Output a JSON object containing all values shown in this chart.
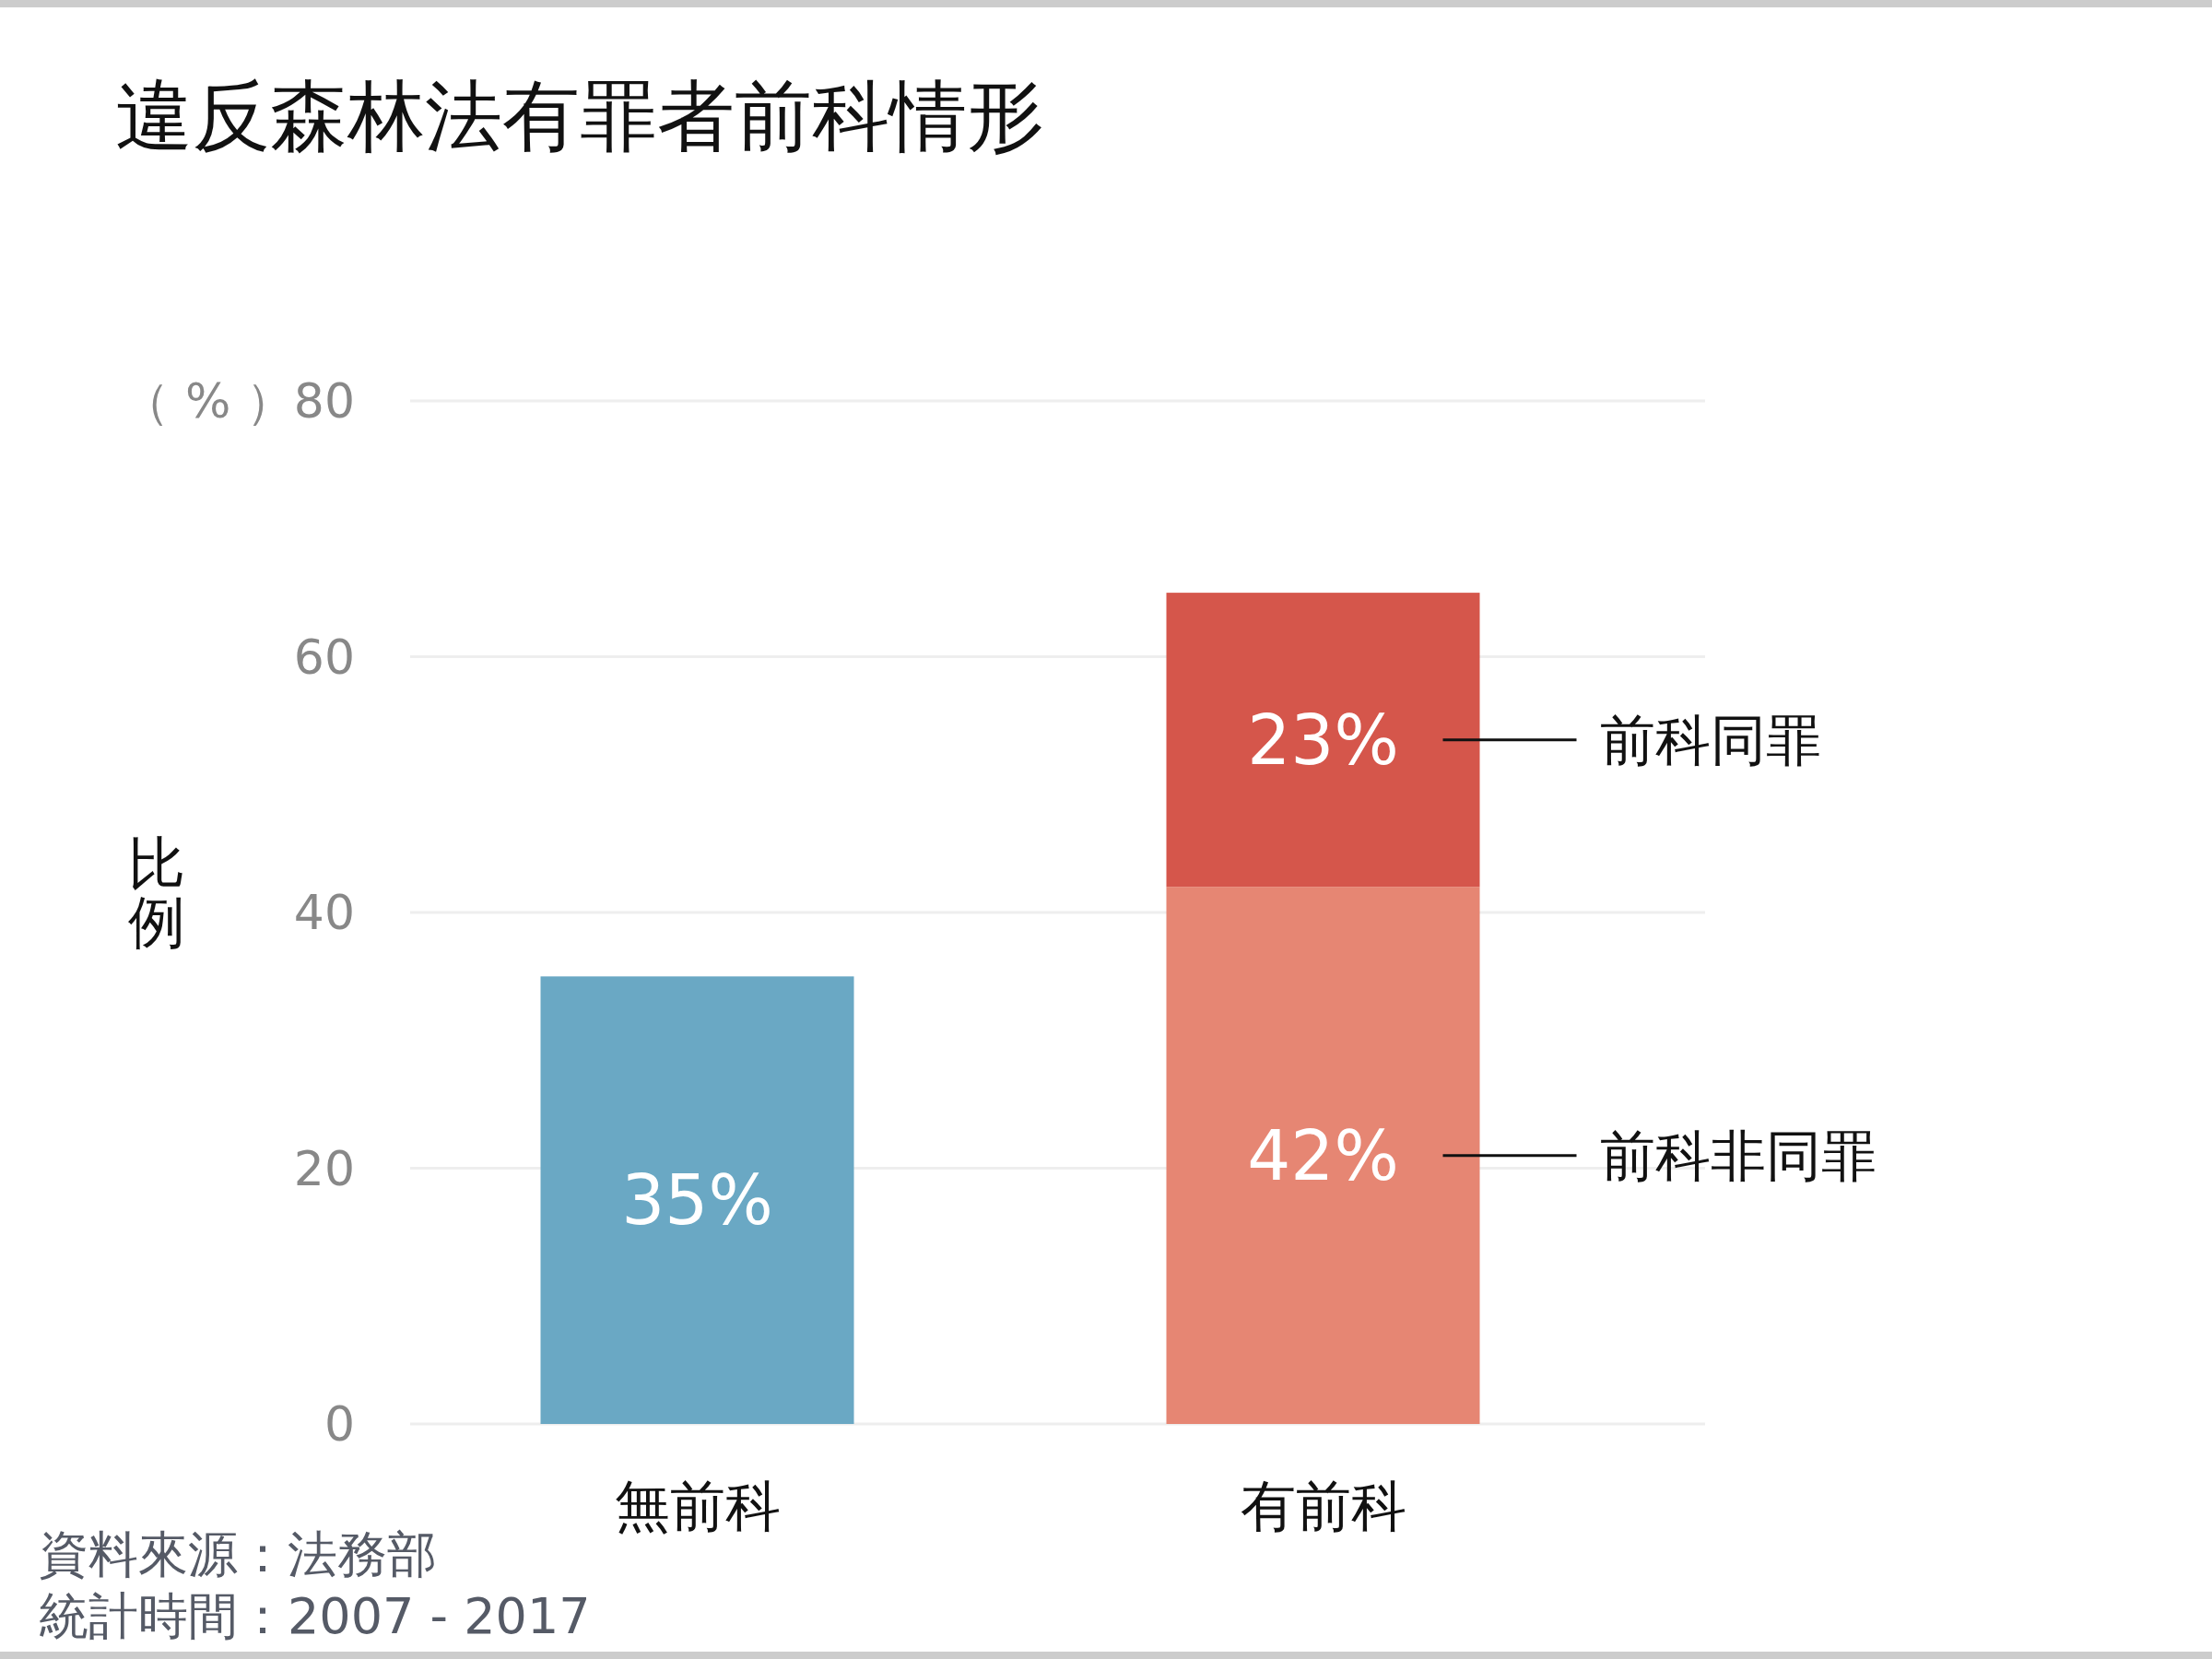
{
  "chart_data": {
    "type": "bar",
    "title": "違反森林法有罪者前科情形",
    "ylabel": "比例",
    "categories": [
      "無前科",
      "有前科"
    ],
    "stacked": true,
    "series": [
      {
        "color": "#6aa8c4",
        "values": [
          35,
          null
        ],
        "value_labels": [
          "35%",
          null
        ]
      },
      {
        "name": "前科非同罪",
        "color": "#e68673",
        "values": [
          null,
          42
        ],
        "value_labels": [
          null,
          "42%"
        ]
      },
      {
        "name": "前科同罪",
        "color": "#d5564b",
        "values": [
          null,
          23
        ],
        "value_labels": [
          null,
          "23%"
        ]
      }
    ],
    "ylim": [
      0,
      80
    ],
    "yticks": [
      0,
      20,
      40,
      60,
      {
        "value": 80,
        "label": "（ % ）80"
      }
    ],
    "grid": "y",
    "annotations": [
      "資料來源：法務部",
      "統計時間：2007 - 2017"
    ]
  }
}
